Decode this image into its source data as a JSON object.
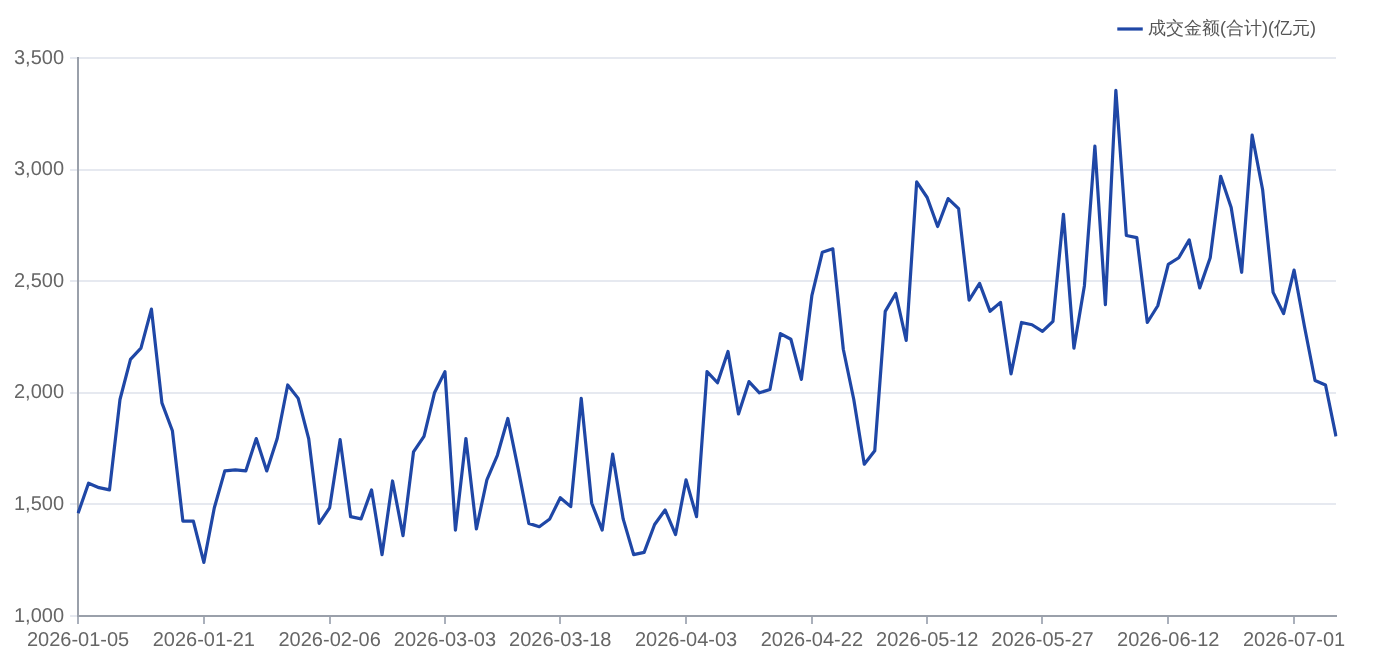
{
  "chart_data": {
    "type": "line",
    "categories": [
      "2026-01-05",
      null,
      null,
      null,
      null,
      null,
      null,
      null,
      null,
      null,
      null,
      null,
      "2026-01-21",
      null,
      null,
      null,
      null,
      null,
      null,
      null,
      null,
      null,
      null,
      null,
      "2026-02-06",
      null,
      null,
      null,
      null,
      null,
      null,
      null,
      null,
      null,
      null,
      "2026-03-03",
      null,
      null,
      null,
      null,
      null,
      null,
      null,
      null,
      null,
      null,
      "2026-03-18",
      null,
      null,
      null,
      null,
      null,
      null,
      null,
      null,
      null,
      null,
      null,
      "2026-04-03",
      null,
      null,
      null,
      null,
      null,
      null,
      null,
      null,
      null,
      null,
      null,
      "2026-04-22",
      null,
      null,
      null,
      null,
      null,
      null,
      null,
      null,
      null,
      null,
      "2026-05-12",
      null,
      null,
      null,
      null,
      null,
      null,
      null,
      null,
      null,
      null,
      "2026-05-27",
      null,
      null,
      null,
      null,
      null,
      null,
      null,
      null,
      null,
      null,
      null,
      "2026-06-12",
      null,
      null,
      null,
      null,
      null,
      null,
      null,
      null,
      null,
      null,
      null,
      "2026-07-01",
      null,
      null,
      null,
      null
    ],
    "series": [
      {
        "name": "成交金额(合计)(亿元)",
        "color": "#1f47a6",
        "values": [
          1460,
          1595,
          1575,
          1565,
          1970,
          2150,
          2200,
          2375,
          1955,
          1830,
          1425,
          1425,
          1240,
          1485,
          1650,
          1655,
          1650,
          1795,
          1650,
          1795,
          2035,
          1975,
          1795,
          1415,
          1485,
          1790,
          1445,
          1435,
          1565,
          1275,
          1605,
          1360,
          1735,
          1805,
          2000,
          2095,
          1385,
          1795,
          1390,
          1610,
          1720,
          1885,
          1655,
          1415,
          1400,
          1435,
          1530,
          1490,
          1975,
          1505,
          1385,
          1725,
          1435,
          1275,
          1285,
          1410,
          1475,
          1365,
          1610,
          1445,
          2095,
          2045,
          2185,
          1905,
          2050,
          2000,
          2015,
          2265,
          2240,
          2060,
          2435,
          2630,
          2645,
          2195,
          1970,
          1680,
          1740,
          2365,
          2445,
          2235,
          2945,
          2875,
          2745,
          2870,
          2825,
          2415,
          2490,
          2365,
          2405,
          2085,
          2315,
          2305,
          2275,
          2320,
          2800,
          2200,
          2480,
          3105,
          2395,
          3355,
          2705,
          2695,
          2315,
          2390,
          2575,
          2605,
          2685,
          2470,
          2605,
          2970,
          2830,
          2540,
          3155,
          2910,
          2450,
          2355,
          2550,
          2295,
          2055,
          2035,
          1805
        ]
      }
    ],
    "ylim": [
      1000,
      3500
    ],
    "yticks": [
      {
        "value": 1000,
        "label": "1,000"
      },
      {
        "value": 1500,
        "label": "1,500"
      },
      {
        "value": 2000,
        "label": "2,000"
      },
      {
        "value": 2500,
        "label": "2,500"
      },
      {
        "value": 3000,
        "label": "3,000"
      },
      {
        "value": 3500,
        "label": "3,500"
      }
    ],
    "grid": "y",
    "legend": "top right",
    "marker": "none",
    "line_style": "solid"
  }
}
